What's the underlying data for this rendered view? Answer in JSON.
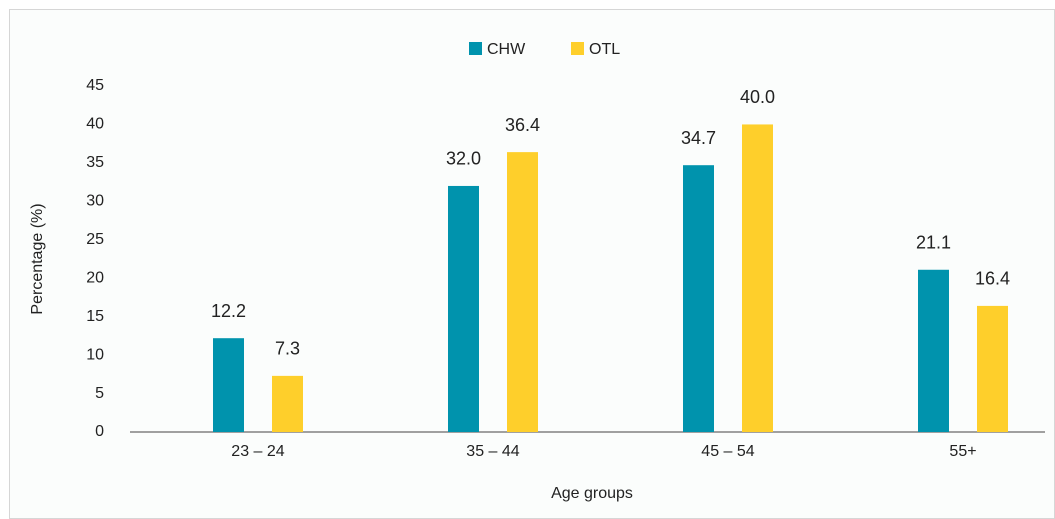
{
  "chart_data": {
    "type": "bar",
    "categories": [
      "23 – 24",
      "35 – 44",
      "45 – 54",
      "55+"
    ],
    "series": [
      {
        "name": "CHW",
        "color": "#0093ad",
        "values": [
          12.2,
          32.0,
          34.7,
          21.1
        ],
        "value_labels": [
          "12.2",
          "32.0",
          "34.7",
          "21.1"
        ]
      },
      {
        "name": "OTL",
        "color": "#fecf2b",
        "values": [
          7.3,
          36.4,
          40.0,
          16.4
        ],
        "value_labels": [
          "7.3",
          "36.4",
          "40.0",
          "16.4"
        ]
      }
    ],
    "ylim": [
      0,
      45
    ],
    "yticks": [
      0,
      5,
      10,
      15,
      20,
      25,
      30,
      35,
      40,
      45
    ],
    "y_label": "Percentage (%)",
    "x_label": "Age groups",
    "legend": "top",
    "grid": false
  }
}
